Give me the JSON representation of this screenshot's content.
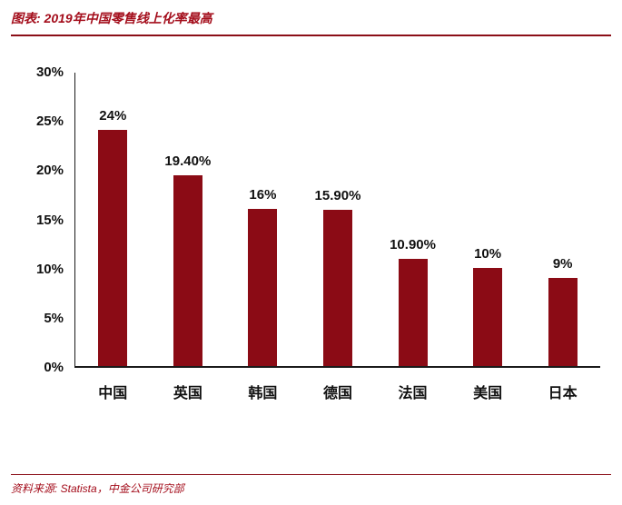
{
  "header": {
    "title": "图表: 2019年中国零售线上化率最高"
  },
  "footer": {
    "source": "资料来源: Statista，中金公司研究部"
  },
  "chart_data": {
    "type": "bar",
    "title": "图表: 2019年中国零售线上化率最高",
    "categories": [
      "中国",
      "英国",
      "韩国",
      "德国",
      "法国",
      "美国",
      "日本"
    ],
    "values": [
      24,
      19.4,
      16,
      15.9,
      10.9,
      10,
      9
    ],
    "value_labels": [
      "24%",
      "19.40%",
      "16%",
      "15.90%",
      "10.90%",
      "10%",
      "9%"
    ],
    "xlabel": "",
    "ylabel": "",
    "ylim": [
      0,
      30
    ],
    "ytick_values": [
      30,
      25,
      20,
      15,
      10,
      5,
      0
    ],
    "ytick_labels": [
      "30%",
      "25%",
      "20%",
      "15%",
      "10%",
      "5%",
      "0%"
    ],
    "grid": false,
    "legend": false,
    "bar_color": "#8B0B15",
    "accent_color": "#A40E1C",
    "source": "资料来源: Statista，中金公司研究部"
  }
}
